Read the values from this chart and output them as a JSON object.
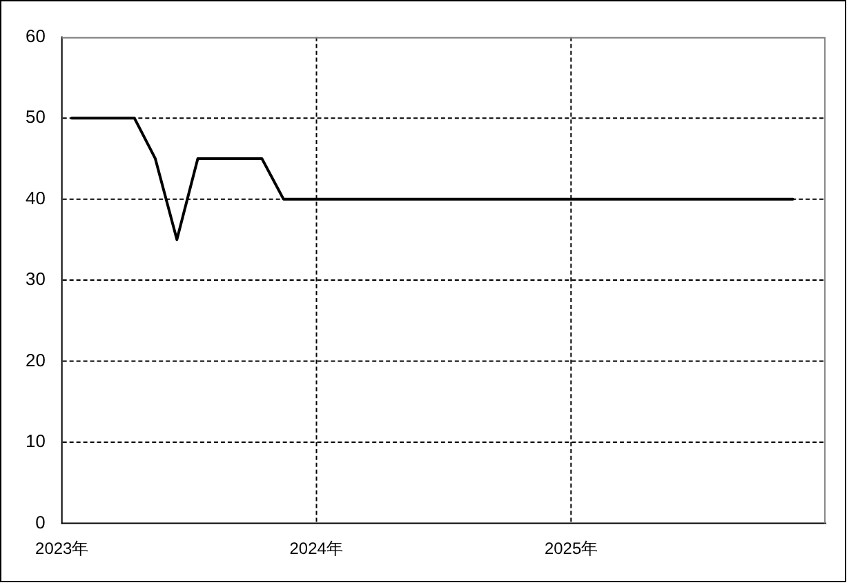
{
  "chart_data": {
    "type": "line",
    "x": [
      "2023-01-15",
      "2023-02-15",
      "2023-03-15",
      "2023-04-15",
      "2023-05-15",
      "2023-06-15",
      "2023-07-15",
      "2023-08-15",
      "2023-09-15",
      "2023-10-15",
      "2023-11-15",
      "2023-12-15",
      "2024-01-15",
      "2024-02-15",
      "2024-03-15",
      "2024-04-15",
      "2024-05-15",
      "2024-06-15",
      "2024-07-15",
      "2024-08-15",
      "2024-09-15",
      "2024-10-15",
      "2024-11-15",
      "2024-12-15",
      "2025-01-15",
      "2025-02-15",
      "2025-03-15",
      "2025-04-15",
      "2025-05-15",
      "2025-06-15",
      "2025-07-15",
      "2025-08-15",
      "2025-09-15",
      "2025-10-15",
      "2025-11-15"
    ],
    "series": [
      {
        "color": "#000000",
        "values": [
          50,
          50,
          50,
          50,
          45,
          35,
          45,
          45,
          45,
          45,
          40,
          40,
          40,
          40,
          40,
          40,
          40,
          40,
          40,
          40,
          40,
          40,
          40,
          40,
          40,
          40,
          40,
          40,
          40,
          40,
          40,
          40,
          40,
          40,
          40
        ]
      }
    ],
    "xlim": [
      "2023-01-01",
      "2026-01-01"
    ],
    "xticks": [
      {
        "value": "2023",
        "label": "2023年"
      },
      {
        "value": "2024",
        "label": "2024年"
      },
      {
        "value": "2025",
        "label": "2025年"
      }
    ],
    "ylim": [
      0,
      60
    ],
    "yticks": [
      0,
      10,
      20,
      30,
      40,
      50,
      60
    ],
    "grid": true,
    "legend": false,
    "marker": "none"
  }
}
